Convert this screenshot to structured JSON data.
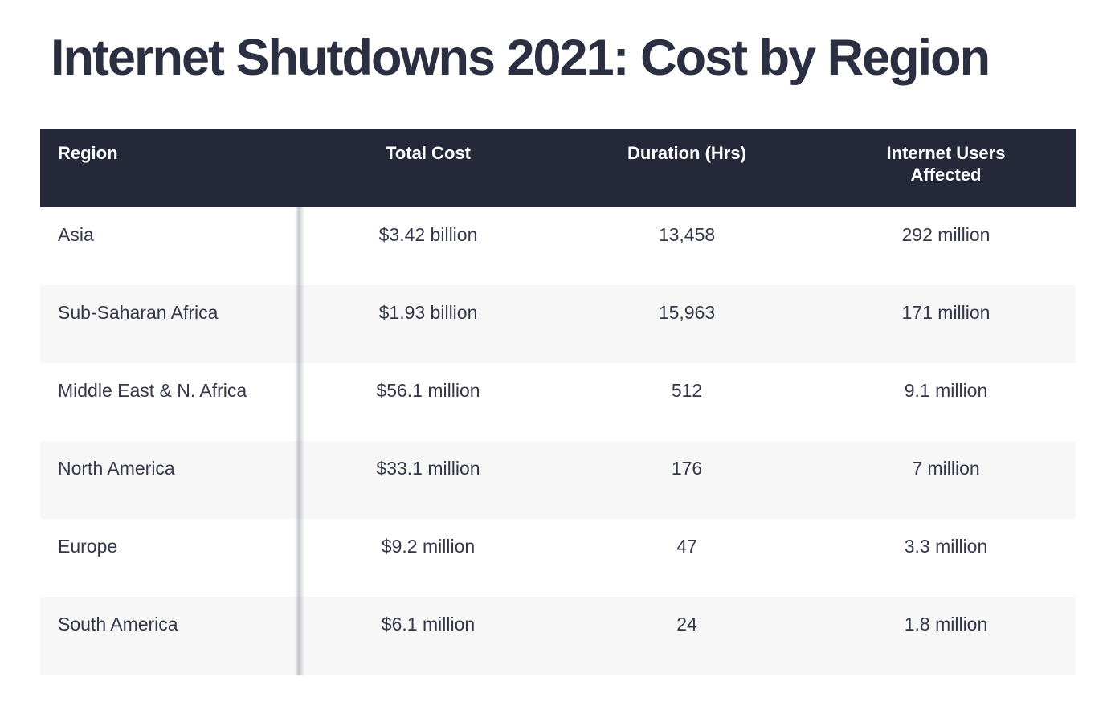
{
  "page": {
    "title": "Internet Shutdowns 2021: Cost by Region"
  },
  "table": {
    "headers": [
      "Region",
      "Total Cost",
      "Duration (Hrs)",
      "Internet Users Affected"
    ],
    "rows": [
      {
        "region": "Asia",
        "total_cost": "$3.42 billion",
        "duration": "13,458",
        "users": "292 million"
      },
      {
        "region": "Sub-Saharan Africa",
        "total_cost": "$1.93 billion",
        "duration": "15,963",
        "users": "171 million"
      },
      {
        "region": "Middle East & N. Africa",
        "total_cost": "$56.1 million",
        "duration": "512",
        "users": "9.1 million"
      },
      {
        "region": "North America",
        "total_cost": "$33.1 million",
        "duration": "176",
        "users": "7 million"
      },
      {
        "region": "Europe",
        "total_cost": "$9.2 million",
        "duration": "47",
        "users": "3.3 million"
      },
      {
        "region": "South America",
        "total_cost": "$6.1 million",
        "duration": "24",
        "users": "1.8 million"
      }
    ]
  },
  "colors": {
    "header_bg": "#242839",
    "header_text": "#ffffff",
    "title_text": "#2b2f42",
    "body_text": "#34374a",
    "row_stripe": "#f7f7f8",
    "page_bg": "#ffffff",
    "column_divider": "#787d87"
  },
  "chart_data": {
    "type": "table",
    "title": "Internet Shutdowns 2021: Cost by Region",
    "columns": [
      "Region",
      "Total Cost",
      "Duration (Hrs)",
      "Internet Users Affected"
    ],
    "rows": [
      [
        "Asia",
        "$3.42 billion",
        "13,458",
        "292 million"
      ],
      [
        "Sub-Saharan Africa",
        "$1.93 billion",
        "15,963",
        "171 million"
      ],
      [
        "Middle East & N. Africa",
        "$56.1 million",
        "512",
        "9.1 million"
      ],
      [
        "North America",
        "$33.1 million",
        "176",
        "7 million"
      ],
      [
        "Europe",
        "$9.2 million",
        "47",
        "3.3 million"
      ],
      [
        "South America",
        "$6.1 million",
        "24",
        "1.8 million"
      ]
    ],
    "numeric": {
      "total_cost_usd": [
        3420000000,
        1930000000,
        56100000,
        33100000,
        9200000,
        6100000
      ],
      "duration_hrs": [
        13458,
        15963,
        512,
        176,
        47,
        24
      ],
      "internet_users_affected": [
        292000000,
        171000000,
        9100000,
        7000000,
        3300000,
        1800000
      ]
    },
    "layout": {
      "striped_rows": true,
      "frozen_first_column_shadow": true,
      "header_alignment": [
        "left",
        "center",
        "center",
        "center"
      ]
    }
  }
}
